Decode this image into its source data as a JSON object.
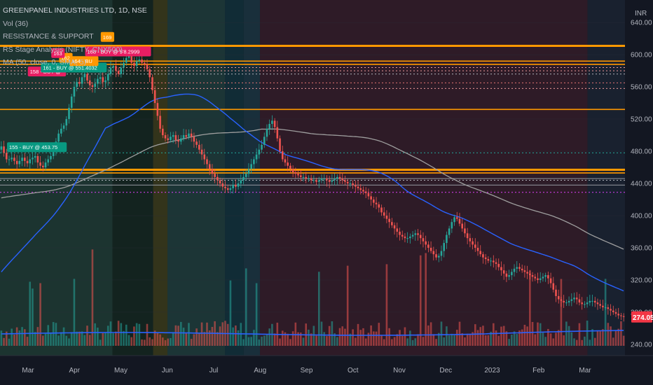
{
  "legend": {
    "symbol": "GREENPANEL INDUSTRIES LTD, 1D, NSE",
    "vol": "Vol (36)",
    "rs": "RESISTANCE & SUPPORT",
    "stage": "RS Stage Analysis (NIFTY, CNX500)",
    "ma": "MA (50, close, 0, SMA, 5)"
  },
  "chart_data": {
    "type": "candlestick",
    "currency": "INR",
    "y_ticks": [
      240,
      280,
      320,
      360,
      400,
      440,
      480,
      520,
      560,
      600,
      640
    ],
    "y_tick_labels": [
      "240.00",
      "280.00",
      "320.00",
      "360.00",
      "400.00",
      "440.00",
      "480.00",
      "520.00",
      "560.00",
      "600.00",
      "640.00"
    ],
    "ylim": [
      226,
      668
    ],
    "x_labels": [
      "Mar",
      "Apr",
      "May",
      "Jun",
      "Jul",
      "Aug",
      "Sep",
      "Oct",
      "Nov",
      "Dec",
      "2023",
      "Feb",
      "Mar"
    ],
    "last_price": 274.05,
    "last_price_label": "274.05",
    "stage_bands": [
      {
        "start": 0,
        "end": 0.18,
        "color": "#1e3a32"
      },
      {
        "start": 0.18,
        "end": 0.245,
        "color": "#14261f"
      },
      {
        "start": 0.245,
        "end": 0.268,
        "color": "#3a3a1a"
      },
      {
        "start": 0.268,
        "end": 0.36,
        "color": "#1f3b3a"
      },
      {
        "start": 0.36,
        "end": 0.39,
        "color": "#12303a"
      },
      {
        "start": 0.39,
        "end": 0.416,
        "color": "#1b3440"
      },
      {
        "start": 0.416,
        "end": 0.94,
        "color": "#341c28"
      },
      {
        "start": 0.94,
        "end": 1,
        "color": "#1b2331"
      }
    ],
    "solid_levels": [
      611,
      592,
      588,
      532,
      457,
      453
    ],
    "dashed_levels": [
      {
        "v": 584,
        "color": "#ef9a9a"
      },
      {
        "v": 580,
        "color": "#ef9a9a"
      },
      {
        "v": 576,
        "color": "#b2b5be"
      },
      {
        "v": 565,
        "color": "#e57373"
      },
      {
        "v": 558,
        "color": "#ef9a9a"
      },
      {
        "v": 478,
        "color": "#26a69a"
      },
      {
        "v": 444,
        "color": "#b2b5be"
      },
      {
        "v": 429,
        "color": "#e040fb"
      }
    ],
    "grey_levels": [
      446,
      438
    ],
    "close": [
      486,
      478,
      470,
      470,
      472,
      468,
      464,
      468,
      472,
      468,
      465,
      470,
      472,
      474,
      466,
      462,
      460,
      466,
      470,
      474,
      480,
      492,
      502,
      508,
      512,
      520,
      534,
      548,
      560,
      566,
      564,
      572,
      576,
      568,
      562,
      560,
      564,
      570,
      572,
      566,
      568,
      576,
      584,
      586,
      580,
      576,
      584,
      590,
      596,
      598,
      590,
      586,
      592,
      594,
      590,
      588,
      582,
      572,
      556,
      540,
      524,
      508,
      500,
      496,
      494,
      498,
      500,
      494,
      492,
      496,
      500,
      498,
      502,
      498,
      492,
      488,
      482,
      476,
      470,
      464,
      458,
      452,
      448,
      444,
      440,
      436,
      434,
      432,
      434,
      438,
      436,
      440,
      444,
      448,
      452,
      458,
      464,
      470,
      476,
      482,
      488,
      498,
      508,
      514,
      518,
      510,
      496,
      480,
      470,
      466,
      462,
      458,
      454,
      452,
      450,
      448,
      448,
      446,
      446,
      444,
      444,
      442,
      444,
      446,
      446,
      444,
      442,
      444,
      446,
      448,
      446,
      444,
      442,
      440,
      440,
      438,
      436,
      434,
      432,
      430,
      428,
      424,
      420,
      416,
      414,
      410,
      404,
      400,
      396,
      392,
      388,
      384,
      380,
      376,
      374,
      372,
      372,
      374,
      376,
      378,
      376,
      372,
      368,
      364,
      360,
      356,
      352,
      348,
      350,
      356,
      366,
      376,
      384,
      392,
      398,
      396,
      390,
      384,
      378,
      372,
      368,
      364,
      360,
      356,
      352,
      348,
      346,
      344,
      344,
      342,
      340,
      336,
      332,
      328,
      324,
      326,
      330,
      334,
      336,
      334,
      332,
      330,
      328,
      326,
      324,
      322,
      320,
      322,
      324,
      326,
      322,
      316,
      308,
      300,
      296,
      294,
      292,
      292,
      294,
      296,
      298,
      296,
      292,
      290,
      290,
      292,
      294,
      294,
      292,
      290,
      288,
      286,
      286,
      284,
      282,
      280,
      278,
      276,
      275,
      274
    ],
    "ma_blue_start": 330,
    "ma_grey_start": 422,
    "signals": [
      {
        "i": 3,
        "v": 479,
        "color": "#089981",
        "text": "155 - BUY @ 453.75"
      },
      {
        "i": 11,
        "v": 573,
        "color": "#e91e63",
        "text": "158 - BUY @"
      },
      {
        "i": 16,
        "v": 578,
        "color": "#089981",
        "text": "161 - BUY @ 551.4032"
      },
      {
        "i": 23,
        "v": 590,
        "color": "#ff9800",
        "text": "162"
      },
      {
        "i": 20,
        "v": 596,
        "color": "#e91e63",
        "text": "163"
      },
      {
        "i": 27,
        "v": 586,
        "color": "#ff9800",
        "text": "164 - BU"
      },
      {
        "i": 33,
        "v": 598,
        "color": "#e91e63",
        "text": "168 - BUY @ 5'8.2999"
      },
      {
        "i": 39,
        "v": 616,
        "color": "#ff9800",
        "text": "169"
      }
    ]
  }
}
